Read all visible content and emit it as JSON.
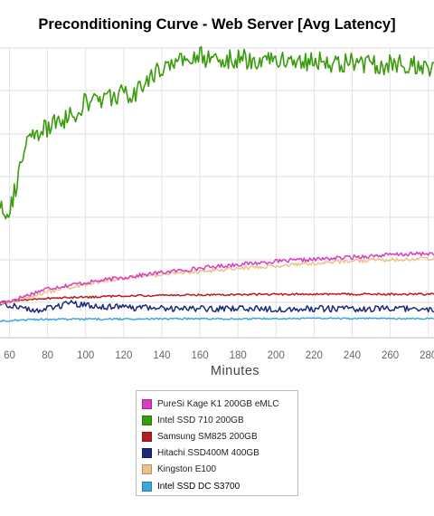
{
  "chart_data": {
    "type": "line",
    "title": "Preconditioning Curve - Web Server [Avg Latency]",
    "xlabel": "Minutes",
    "ylabel": "",
    "xlim": [
      55,
      283
    ],
    "ylim": [
      0,
      100
    ],
    "x_ticks": [
      60,
      80,
      100,
      120,
      140,
      160,
      180,
      200,
      220,
      240,
      260,
      280
    ],
    "grid": true,
    "legend_position": "bottom",
    "series": [
      {
        "name": "PureSi Kage K1 200GB eMLC",
        "color": "#d73fc0",
        "noise": 0.7,
        "points": [
          [
            55,
            12.0
          ],
          [
            60,
            12.6
          ],
          [
            70,
            14.8
          ],
          [
            80,
            17.0
          ],
          [
            100,
            19.0
          ],
          [
            120,
            20.8
          ],
          [
            140,
            22.5
          ],
          [
            160,
            24.0
          ],
          [
            180,
            25.3
          ],
          [
            200,
            26.3
          ],
          [
            220,
            27.0
          ],
          [
            240,
            27.8
          ],
          [
            260,
            28.6
          ],
          [
            283,
            29.1
          ]
        ]
      },
      {
        "name": "Intel SSD 710 200GB",
        "color": "#3a9b0d",
        "noise": 3.6,
        "points": [
          [
            55,
            46.0
          ],
          [
            57,
            45.0
          ],
          [
            59,
            44.0
          ],
          [
            60,
            44.2
          ],
          [
            63,
            51.0
          ],
          [
            66,
            60.0
          ],
          [
            69,
            66.5
          ],
          [
            72,
            69.0
          ],
          [
            76,
            71.0
          ],
          [
            80,
            72.0
          ],
          [
            84,
            74.0
          ],
          [
            88,
            75.5
          ],
          [
            92,
            76.5
          ],
          [
            96,
            77.5
          ],
          [
            98,
            80.5
          ],
          [
            102,
            81.5
          ],
          [
            106,
            82.0
          ],
          [
            110,
            82.5
          ],
          [
            115,
            83.5
          ],
          [
            118,
            84.5
          ],
          [
            122,
            83.0
          ],
          [
            126,
            84.0
          ],
          [
            129,
            85.5
          ],
          [
            131,
            88.5
          ],
          [
            134,
            90.5
          ],
          [
            138,
            92.0
          ],
          [
            140,
            92.5
          ],
          [
            142,
            95.5
          ],
          [
            145,
            94.0
          ],
          [
            150,
            95.0
          ],
          [
            155,
            96.5
          ],
          [
            160,
            97.0
          ],
          [
            170,
            96.5
          ],
          [
            180,
            96.0
          ],
          [
            190,
            96.0
          ],
          [
            195,
            97.0
          ],
          [
            200,
            95.5
          ],
          [
            210,
            96.0
          ],
          [
            220,
            95.5
          ],
          [
            230,
            94.5
          ],
          [
            240,
            95.0
          ],
          [
            250,
            94.5
          ],
          [
            260,
            94.0
          ],
          [
            270,
            94.0
          ],
          [
            283,
            93.5
          ]
        ]
      },
      {
        "name": "Samsung SM825 200GB",
        "color": "#b51e1e",
        "noise": 0.35,
        "points": [
          [
            55,
            12.2
          ],
          [
            60,
            12.4
          ],
          [
            70,
            13.2
          ],
          [
            80,
            13.6
          ],
          [
            100,
            14.0
          ],
          [
            120,
            14.4
          ],
          [
            140,
            14.6
          ],
          [
            160,
            14.8
          ],
          [
            180,
            14.9
          ],
          [
            200,
            15.0
          ],
          [
            220,
            15.0
          ],
          [
            240,
            15.0
          ],
          [
            260,
            15.0
          ],
          [
            283,
            15.0
          ]
        ]
      },
      {
        "name": "Hitachi SSD400M 400GB",
        "color": "#1a2a78",
        "noise": 1.1,
        "points": [
          [
            55,
            11.5
          ],
          [
            60,
            11.3
          ],
          [
            65,
            10.8
          ],
          [
            70,
            9.7
          ],
          [
            75,
            9.5
          ],
          [
            80,
            9.9
          ],
          [
            85,
            10.8
          ],
          [
            90,
            11.8
          ],
          [
            95,
            11.6
          ],
          [
            100,
            11.0
          ],
          [
            110,
            10.8
          ],
          [
            120,
            10.3
          ],
          [
            140,
            10.2
          ],
          [
            160,
            10.0
          ],
          [
            180,
            10.0
          ],
          [
            200,
            9.9
          ],
          [
            220,
            10.0
          ],
          [
            240,
            9.9
          ],
          [
            260,
            9.9
          ],
          [
            283,
            9.9
          ]
        ]
      },
      {
        "name": "Kingston E100",
        "color": "#f0c08c",
        "noise": 0.7,
        "points": [
          [
            55,
            11.8
          ],
          [
            60,
            12.2
          ],
          [
            70,
            14.0
          ],
          [
            80,
            15.8
          ],
          [
            100,
            18.5
          ],
          [
            120,
            20.5
          ],
          [
            140,
            21.9
          ],
          [
            160,
            22.9
          ],
          [
            180,
            23.9
          ],
          [
            200,
            24.9
          ],
          [
            220,
            25.6
          ],
          [
            240,
            26.4
          ],
          [
            260,
            26.9
          ],
          [
            283,
            27.3
          ]
        ]
      },
      {
        "name": "Intel SSD DC S3700",
        "color": "#3aa8de",
        "noise": 0.3,
        "points": [
          [
            55,
            5.7
          ],
          [
            60,
            5.9
          ],
          [
            70,
            6.2
          ],
          [
            80,
            6.3
          ],
          [
            100,
            6.4
          ],
          [
            120,
            6.4
          ],
          [
            140,
            6.5
          ],
          [
            160,
            6.5
          ],
          [
            180,
            6.5
          ],
          [
            200,
            6.5
          ],
          [
            220,
            6.6
          ],
          [
            240,
            6.6
          ],
          [
            260,
            6.6
          ],
          [
            283,
            6.6
          ]
        ]
      }
    ]
  }
}
